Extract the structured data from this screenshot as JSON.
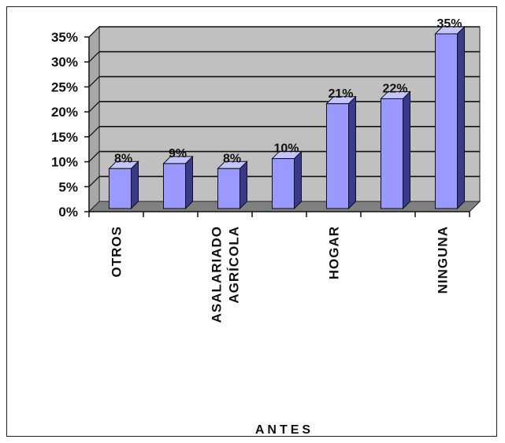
{
  "chart_data": {
    "type": "bar",
    "title": "",
    "xlabel": "ANTES",
    "ylabel": "",
    "ylim": [
      0,
      35
    ],
    "yticks": [
      "0%",
      "5%",
      "10%",
      "15%",
      "20%",
      "25%",
      "30%",
      "35%"
    ],
    "categories": [
      "OTROS",
      "",
      "ASALARIADO AGRÍCOLA",
      "",
      "HOGAR",
      "",
      "NINGUNA"
    ],
    "category_lines": [
      [
        "OTROS"
      ],
      [],
      [
        "ASALARIADO",
        "AGRÍCOLA"
      ],
      [],
      [
        "HOGAR"
      ],
      [],
      [
        "NINGUNA"
      ]
    ],
    "values": [
      8,
      9,
      8,
      10,
      21,
      22,
      35
    ],
    "data_labels": [
      "8%",
      "9%",
      "8%",
      "10%",
      "21%",
      "22%",
      "35%"
    ],
    "grid": true,
    "style": "3d",
    "colors": {
      "bar_front": "#9999ff",
      "bar_side": "#3a3a8c",
      "bar_top": "#c4c4ff",
      "wall": "#c0c0c0",
      "floor": "#808080"
    }
  }
}
